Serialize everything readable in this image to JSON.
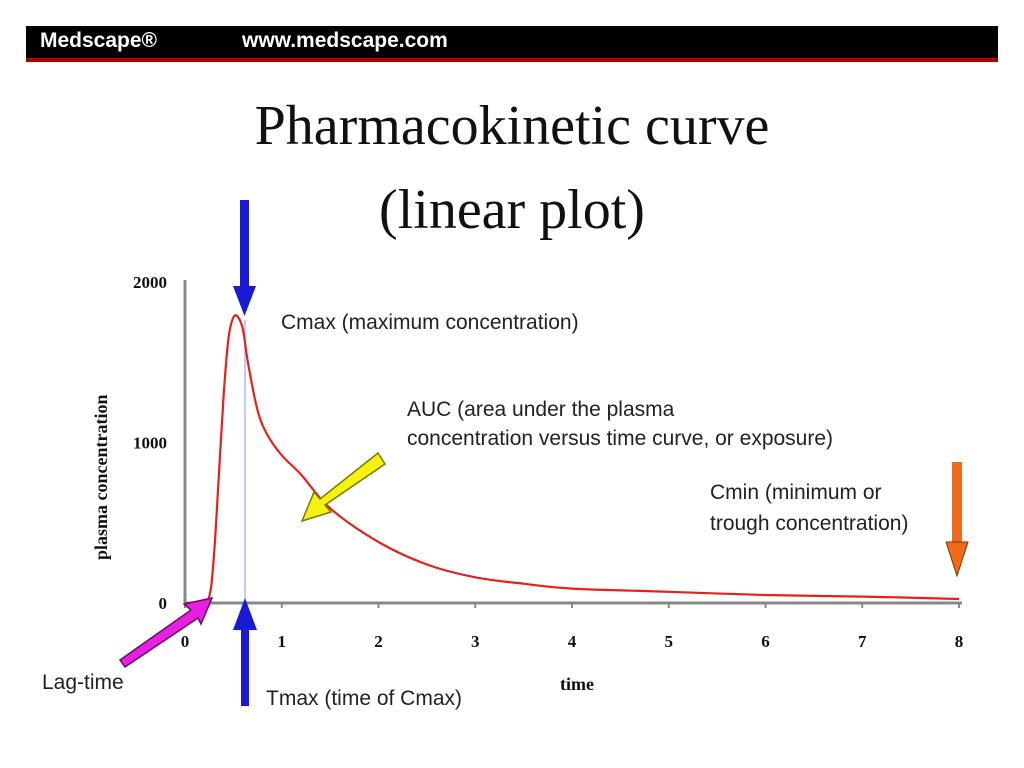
{
  "header": {
    "brand": "Medscape®",
    "url": "www.medscape.com",
    "bar_color": "#000000",
    "rule_color": "#b00000"
  },
  "title_line1": "Pharmacokinetic curve",
  "title_line2": "(linear plot)",
  "chart_data": {
    "type": "line",
    "title": "Pharmacokinetic curve (linear plot)",
    "xlabel": "time",
    "ylabel": "plasma concentration",
    "xlim": [
      0,
      8
    ],
    "ylim": [
      0,
      2000
    ],
    "xticks": [
      0,
      1,
      2,
      3,
      4,
      5,
      6,
      7,
      8
    ],
    "yticks": [
      0,
      1000,
      2000
    ],
    "grid": false,
    "series": [
      {
        "color": "#e8201c",
        "x": [
          0,
          0.15,
          0.25,
          0.3,
          0.35,
          0.4,
          0.45,
          0.5,
          0.55,
          0.6,
          0.65,
          0.75,
          0.85,
          1.0,
          1.2,
          1.5,
          2.0,
          2.5,
          3.0,
          3.5,
          4.0,
          5.0,
          6.0,
          7.0,
          8.0
        ],
        "values": [
          0,
          0,
          40,
          300,
          800,
          1300,
          1650,
          1780,
          1780,
          1700,
          1500,
          1200,
          1050,
          920,
          800,
          590,
          380,
          240,
          160,
          120,
          90,
          70,
          50,
          40,
          25
        ]
      }
    ],
    "annotations": {
      "cmax": "Cmax (maximum concentration)",
      "auc_line1": "AUC (area under the plasma",
      "auc_line2": "concentration versus time curve, or exposure)",
      "cmin_line1": "Cmin (minimum or",
      "cmin_line2": "trough concentration)",
      "lag": "Lag-time",
      "tmax": "Tmax (time of Cmax)"
    },
    "arrow_colors": {
      "cmax": "#1a1ad4",
      "tmax": "#1a1ad4",
      "auc": "#f4f20e",
      "cmin": "#ef6a1b",
      "lag": "#e61fe0"
    }
  }
}
